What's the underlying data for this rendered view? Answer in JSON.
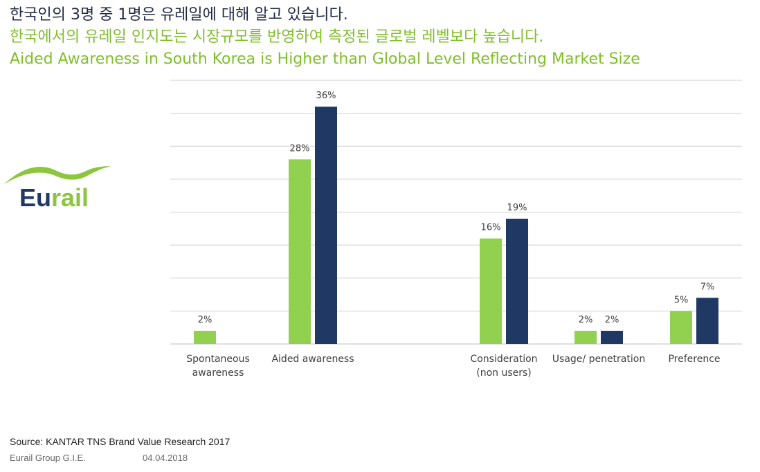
{
  "title": {
    "line1": "한국인의 3명 중 1명은 유레일에 대해 알고 있습니다.",
    "line2": "한국에서의 유레일 인지도는 시장규모를 반영하여 측정된 글로벌 레벨보다 높습니다.",
    "line3": "Aided Awareness in South Korea is Higher than Global Level Reflecting Market Size"
  },
  "logo": {
    "text_eu": "Eu",
    "text_rail": "rail"
  },
  "colors": {
    "green": "#92d050",
    "navy": "#1f3864",
    "grid": "#d0d0d0",
    "title_dark": "#1f2a44",
    "title_green": "#7fbf2a"
  },
  "chart_data": {
    "type": "bar",
    "categories": [
      [
        "Spontaneous",
        "awareness"
      ],
      [
        "Aided awareness"
      ],
      [
        "Consideration",
        "(non users)"
      ],
      [
        "Usage/ penetration"
      ],
      [
        "Preference"
      ]
    ],
    "series": [
      {
        "values": [
          2,
          28,
          16,
          2,
          5
        ],
        "labels": [
          "2%",
          "28%",
          "16%",
          "2%",
          "5%"
        ]
      },
      {
        "values": [
          null,
          36,
          19,
          2,
          7
        ],
        "labels": [
          "",
          "36%",
          "19%",
          "2%",
          "7%"
        ]
      }
    ],
    "ylim": [
      0,
      40
    ],
    "grid": true
  },
  "source": "Source: KANTAR TNS Brand Value Research 2017",
  "footer": {
    "org": "Eurail Group G.I.E.",
    "date": "04.04.2018"
  }
}
